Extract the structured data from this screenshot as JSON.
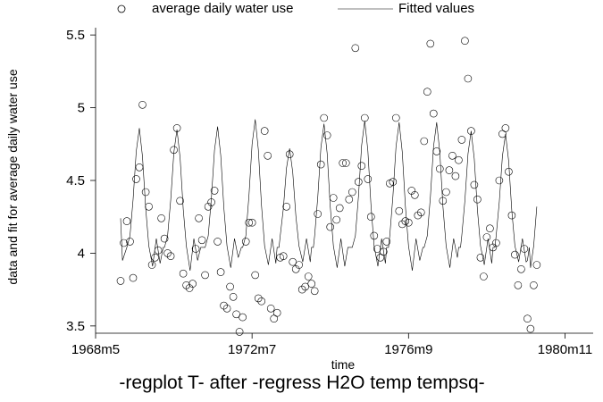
{
  "chart_data": {
    "type": "scatter",
    "title": "",
    "caption": "-regplot T- after -regress H2O temp tempsq-",
    "xlabel": "time",
    "ylabel": "data and fit for average daily water use",
    "x_ticks": [
      "1968m5",
      "1972m7",
      "1976m9",
      "1980m11"
    ],
    "x_tick_positions": [
      100,
      150,
      200,
      250
    ],
    "xlim": [
      100,
      259
    ],
    "y_ticks": [
      "3.5",
      "4",
      "4.5",
      "5",
      "5.5"
    ],
    "y_tick_values": [
      3.5,
      4,
      4.5,
      5,
      5.5
    ],
    "ylim": [
      3.45,
      5.55
    ],
    "grid": false,
    "legend": {
      "position": "top",
      "entries": [
        {
          "label": "average daily water use",
          "marker": "hollow-circle"
        },
        {
          "label": "Fitted values",
          "marker": "line"
        }
      ]
    },
    "series": [
      {
        "name": "average daily water use",
        "kind": "scatter",
        "points": [
          [
            108,
            3.81
          ],
          [
            109,
            4.07
          ],
          [
            110,
            4.22
          ],
          [
            111,
            4.08
          ],
          [
            112,
            3.83
          ],
          [
            113,
            4.51
          ],
          [
            114,
            4.59
          ],
          [
            115,
            5.02
          ],
          [
            116,
            4.42
          ],
          [
            117,
            4.32
          ],
          [
            118,
            3.92
          ],
          [
            119,
            3.97
          ],
          [
            120,
            4.02
          ],
          [
            121,
            4.24
          ],
          [
            122,
            4.1
          ],
          [
            123,
            4.0
          ],
          [
            124,
            3.98
          ],
          [
            125,
            4.71
          ],
          [
            126,
            4.86
          ],
          [
            127,
            4.36
          ],
          [
            128,
            3.86
          ],
          [
            129,
            3.78
          ],
          [
            130,
            3.76
          ],
          [
            131,
            3.79
          ],
          [
            132,
            4.03
          ],
          [
            133,
            4.24
          ],
          [
            134,
            4.09
          ],
          [
            135,
            3.85
          ],
          [
            136,
            4.32
          ],
          [
            137,
            4.35
          ],
          [
            138,
            4.43
          ],
          [
            139,
            4.08
          ],
          [
            140,
            3.87
          ],
          [
            141,
            3.64
          ],
          [
            142,
            3.62
          ],
          [
            143,
            3.77
          ],
          [
            144,
            3.7
          ],
          [
            145,
            3.58
          ],
          [
            146,
            3.46
          ],
          [
            147,
            3.56
          ],
          [
            148,
            4.08
          ],
          [
            149,
            4.21
          ],
          [
            150,
            4.21
          ],
          [
            151,
            3.85
          ],
          [
            152,
            3.69
          ],
          [
            153,
            3.67
          ],
          [
            154,
            4.84
          ],
          [
            155,
            4.67
          ],
          [
            156,
            3.62
          ],
          [
            157,
            3.55
          ],
          [
            158,
            3.59
          ],
          [
            159,
            3.97
          ],
          [
            160,
            3.98
          ],
          [
            161,
            4.32
          ],
          [
            162,
            4.68
          ],
          [
            163,
            3.94
          ],
          [
            164,
            3.89
          ],
          [
            165,
            3.92
          ],
          [
            166,
            3.75
          ],
          [
            167,
            3.77
          ],
          [
            168,
            3.84
          ],
          [
            169,
            3.79
          ],
          [
            170,
            3.74
          ],
          [
            171,
            4.27
          ],
          [
            172,
            4.61
          ],
          [
            173,
            4.93
          ],
          [
            174,
            4.81
          ],
          [
            175,
            4.18
          ],
          [
            176,
            4.38
          ],
          [
            177,
            4.23
          ],
          [
            178,
            4.31
          ],
          [
            179,
            4.62
          ],
          [
            180,
            4.62
          ],
          [
            181,
            4.37
          ],
          [
            182,
            4.42
          ],
          [
            183,
            5.41
          ],
          [
            184,
            4.49
          ],
          [
            185,
            4.6
          ],
          [
            186,
            4.93
          ],
          [
            187,
            4.51
          ],
          [
            188,
            4.25
          ],
          [
            189,
            4.12
          ],
          [
            190,
            4.03
          ],
          [
            191,
            3.97
          ],
          [
            192,
            4.01
          ],
          [
            193,
            4.08
          ],
          [
            194,
            4.48
          ],
          [
            195,
            4.49
          ],
          [
            196,
            4.93
          ],
          [
            197,
            4.29
          ],
          [
            198,
            4.2
          ],
          [
            199,
            4.22
          ],
          [
            200,
            4.21
          ],
          [
            201,
            4.43
          ],
          [
            202,
            4.4
          ],
          [
            203,
            4.26
          ],
          [
            204,
            4.28
          ],
          [
            205,
            4.77
          ],
          [
            206,
            5.11
          ],
          [
            207,
            5.44
          ],
          [
            208,
            4.96
          ],
          [
            209,
            4.7
          ],
          [
            210,
            4.58
          ],
          [
            211,
            4.36
          ],
          [
            212,
            4.42
          ],
          [
            213,
            4.57
          ],
          [
            214,
            4.67
          ],
          [
            215,
            4.53
          ],
          [
            216,
            4.64
          ],
          [
            217,
            4.78
          ],
          [
            218,
            5.46
          ],
          [
            219,
            5.2
          ],
          [
            220,
            4.84
          ],
          [
            221,
            4.47
          ],
          [
            222,
            4.37
          ],
          [
            223,
            3.97
          ],
          [
            224,
            3.84
          ],
          [
            225,
            4.11
          ],
          [
            226,
            4.17
          ],
          [
            227,
            4.04
          ],
          [
            228,
            4.07
          ],
          [
            229,
            4.5
          ],
          [
            230,
            4.82
          ],
          [
            231,
            4.86
          ],
          [
            232,
            4.56
          ],
          [
            233,
            4.26
          ],
          [
            234,
            3.99
          ],
          [
            235,
            3.78
          ],
          [
            236,
            3.89
          ],
          [
            237,
            4.03
          ],
          [
            238,
            3.55
          ],
          [
            239,
            3.48
          ],
          [
            240,
            3.78
          ],
          [
            241,
            3.92
          ]
        ]
      },
      {
        "name": "Fitted values",
        "kind": "line",
        "peaks": [
          [
            114,
            4.86
          ],
          [
            126,
            4.85
          ],
          [
            139,
            4.87
          ],
          [
            151,
            4.92
          ],
          [
            162,
            4.72
          ],
          [
            173,
            4.89
          ],
          [
            186,
            4.91
          ],
          [
            197,
            4.9
          ],
          [
            209,
            4.9
          ],
          [
            220,
            4.84
          ],
          [
            231,
            4.82
          ]
        ],
        "x_range": [
          108,
          241
        ],
        "baseline": 3.97,
        "dips": [
          3.91,
          3.88,
          3.9,
          3.92,
          3.94,
          3.9
        ]
      }
    ]
  }
}
